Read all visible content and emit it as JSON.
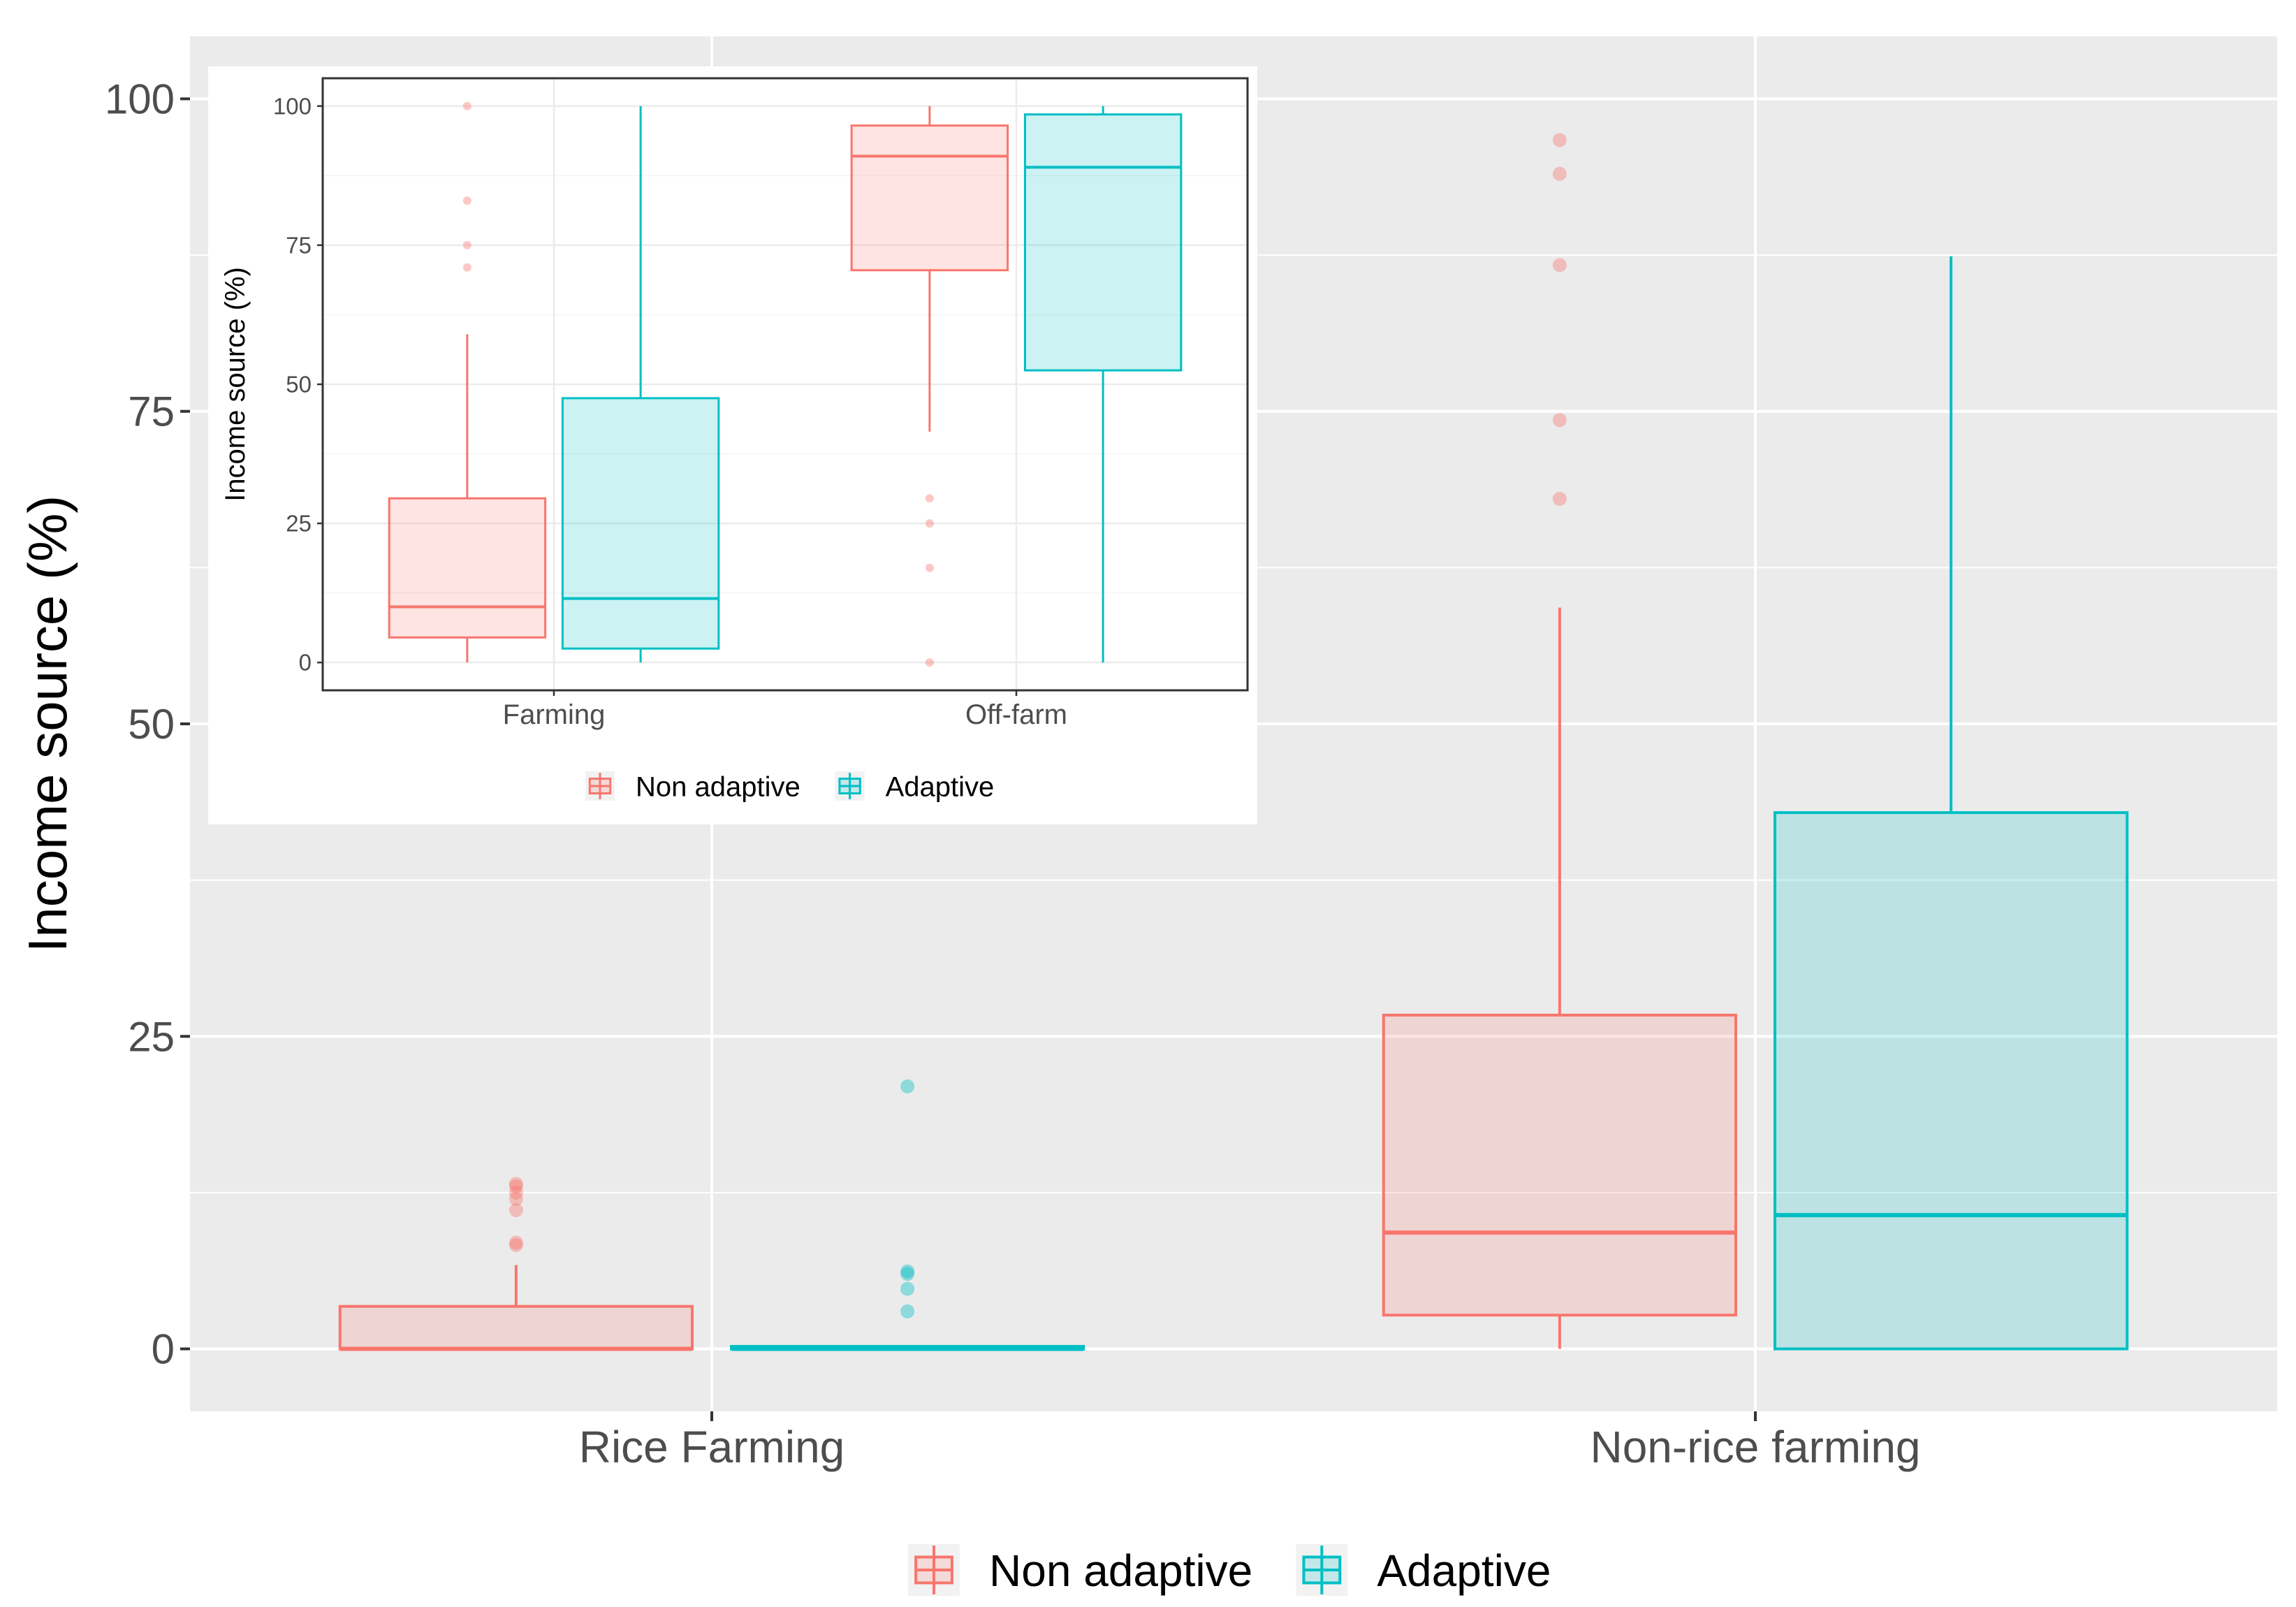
{
  "chart_data": [
    {
      "type": "boxplot",
      "ylabel": "Income source (%)",
      "xlabel": "",
      "ylim": [
        -5,
        105
      ],
      "yticks": [
        0,
        25,
        50,
        75,
        100
      ],
      "categories": [
        "Rice Farming",
        "Non-rice farming"
      ],
      "legend": {
        "position": "bottom",
        "entries": [
          "Non adaptive",
          "Adaptive"
        ]
      },
      "grid": true,
      "series": [
        {
          "name": "Non adaptive",
          "color": "#F8766D",
          "boxes": [
            {
              "category": "Rice Farming",
              "min": 0,
              "q1": 0,
              "median": 0,
              "q3": 3.4,
              "max": 6.7,
              "outliers": [
                8.3,
                8.5,
                11.1,
                12.0,
                12.5,
                13.0,
                13.2
              ]
            },
            {
              "category": "Non-rice farming",
              "min": 0,
              "q1": 2.7,
              "median": 9.3,
              "q3": 26.7,
              "max": 59.3,
              "outliers": [
                68.0,
                74.3,
                86.7,
                94.0,
                96.7
              ]
            }
          ]
        },
        {
          "name": "Adaptive",
          "color": "#00BFC4",
          "boxes": [
            {
              "category": "Rice Farming",
              "min": 0,
              "q1": 0,
              "median": 0,
              "q3": 0.2,
              "max": 0.2,
              "outliers": [
                3.0,
                4.8,
                6.0,
                6.2,
                21.0
              ]
            },
            {
              "category": "Non-rice farming",
              "min": 0,
              "q1": 0,
              "median": 10.7,
              "q3": 42.9,
              "max": 87.4,
              "outliers": []
            }
          ]
        }
      ]
    },
    {
      "type": "boxplot",
      "ylabel": "Income source (%)",
      "xlabel": "",
      "ylim": [
        -5,
        105
      ],
      "yticks": [
        0,
        25,
        50,
        75,
        100
      ],
      "categories": [
        "Farming",
        "Off-farm"
      ],
      "legend": {
        "position": "bottom",
        "entries": [
          "Non adaptive",
          "Adaptive"
        ]
      },
      "grid": true,
      "series": [
        {
          "name": "Non adaptive",
          "color": "#F8766D",
          "boxes": [
            {
              "category": "Farming",
              "min": 0,
              "q1": 4.5,
              "median": 10.0,
              "q3": 29.5,
              "max": 59.0,
              "outliers": [
                71.0,
                75.0,
                83.0,
                100.0
              ]
            },
            {
              "category": "Off-farm",
              "min": 41.5,
              "q1": 70.5,
              "median": 91.0,
              "q3": 96.5,
              "max": 100.0,
              "outliers": [
                0,
                17.0,
                25.0,
                29.5
              ]
            }
          ]
        },
        {
          "name": "Adaptive",
          "color": "#00BFC4",
          "boxes": [
            {
              "category": "Farming",
              "min": 0,
              "q1": 2.5,
              "median": 11.5,
              "q3": 47.5,
              "max": 100.0,
              "outliers": []
            },
            {
              "category": "Off-farm",
              "min": 0,
              "q1": 52.5,
              "median": 89.0,
              "q3": 98.5,
              "max": 100.0,
              "outliers": []
            }
          ]
        }
      ]
    }
  ]
}
